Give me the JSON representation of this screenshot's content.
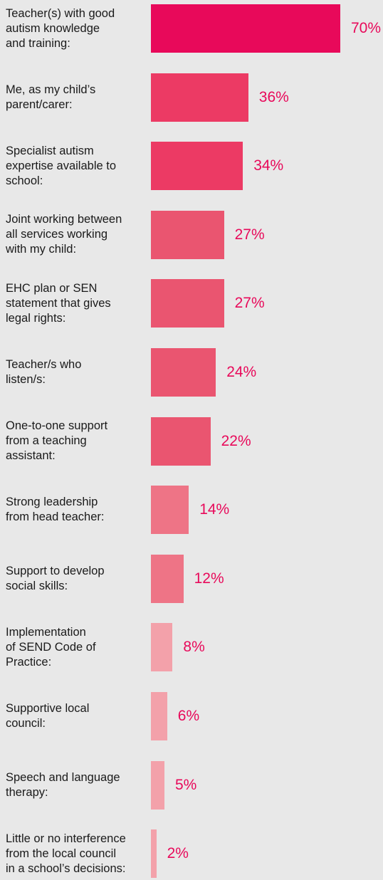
{
  "chart_data": {
    "type": "bar",
    "orientation": "horizontal",
    "categories": [
      "Teacher(s) with good\nautism knowledge\nand training:",
      "Me, as my child’s\nparent/carer:",
      "Specialist autism\nexpertise available to\nschool:",
      "Joint working between\nall services working\nwith my child:",
      "EHC plan or SEN\nstatement that gives\nlegal rights:",
      "Teacher/s who\nlisten/s:",
      "One-to-one support\nfrom a teaching\nassistant:",
      "Strong leadership\nfrom head teacher:",
      "Support to develop\nsocial skills:",
      "Implementation\nof SEND Code of\nPractice:",
      "Supportive local\ncouncil:",
      "Speech and language\ntherapy:",
      "Little or no interference\nfrom the local council\nin a school’s decisions:"
    ],
    "values": [
      70,
      36,
      34,
      27,
      27,
      24,
      22,
      14,
      12,
      8,
      6,
      5,
      2
    ],
    "value_labels": [
      "70%",
      "36%",
      "34%",
      "27%",
      "27%",
      "24%",
      "22%",
      "14%",
      "12%",
      "8%",
      "6%",
      "5%",
      "2%"
    ],
    "bar_colors": [
      "#e8095a",
      "#ec3a64",
      "#ec3a64",
      "#ea5570",
      "#ea5570",
      "#ea5570",
      "#ea5570",
      "#ee7486",
      "#ee7486",
      "#f3a1aa",
      "#f3a1aa",
      "#f3a1aa",
      "#f3a1aa"
    ],
    "value_label_color": "#e8095a",
    "xlim": [
      0,
      70
    ],
    "grid": false,
    "legend": "none"
  }
}
